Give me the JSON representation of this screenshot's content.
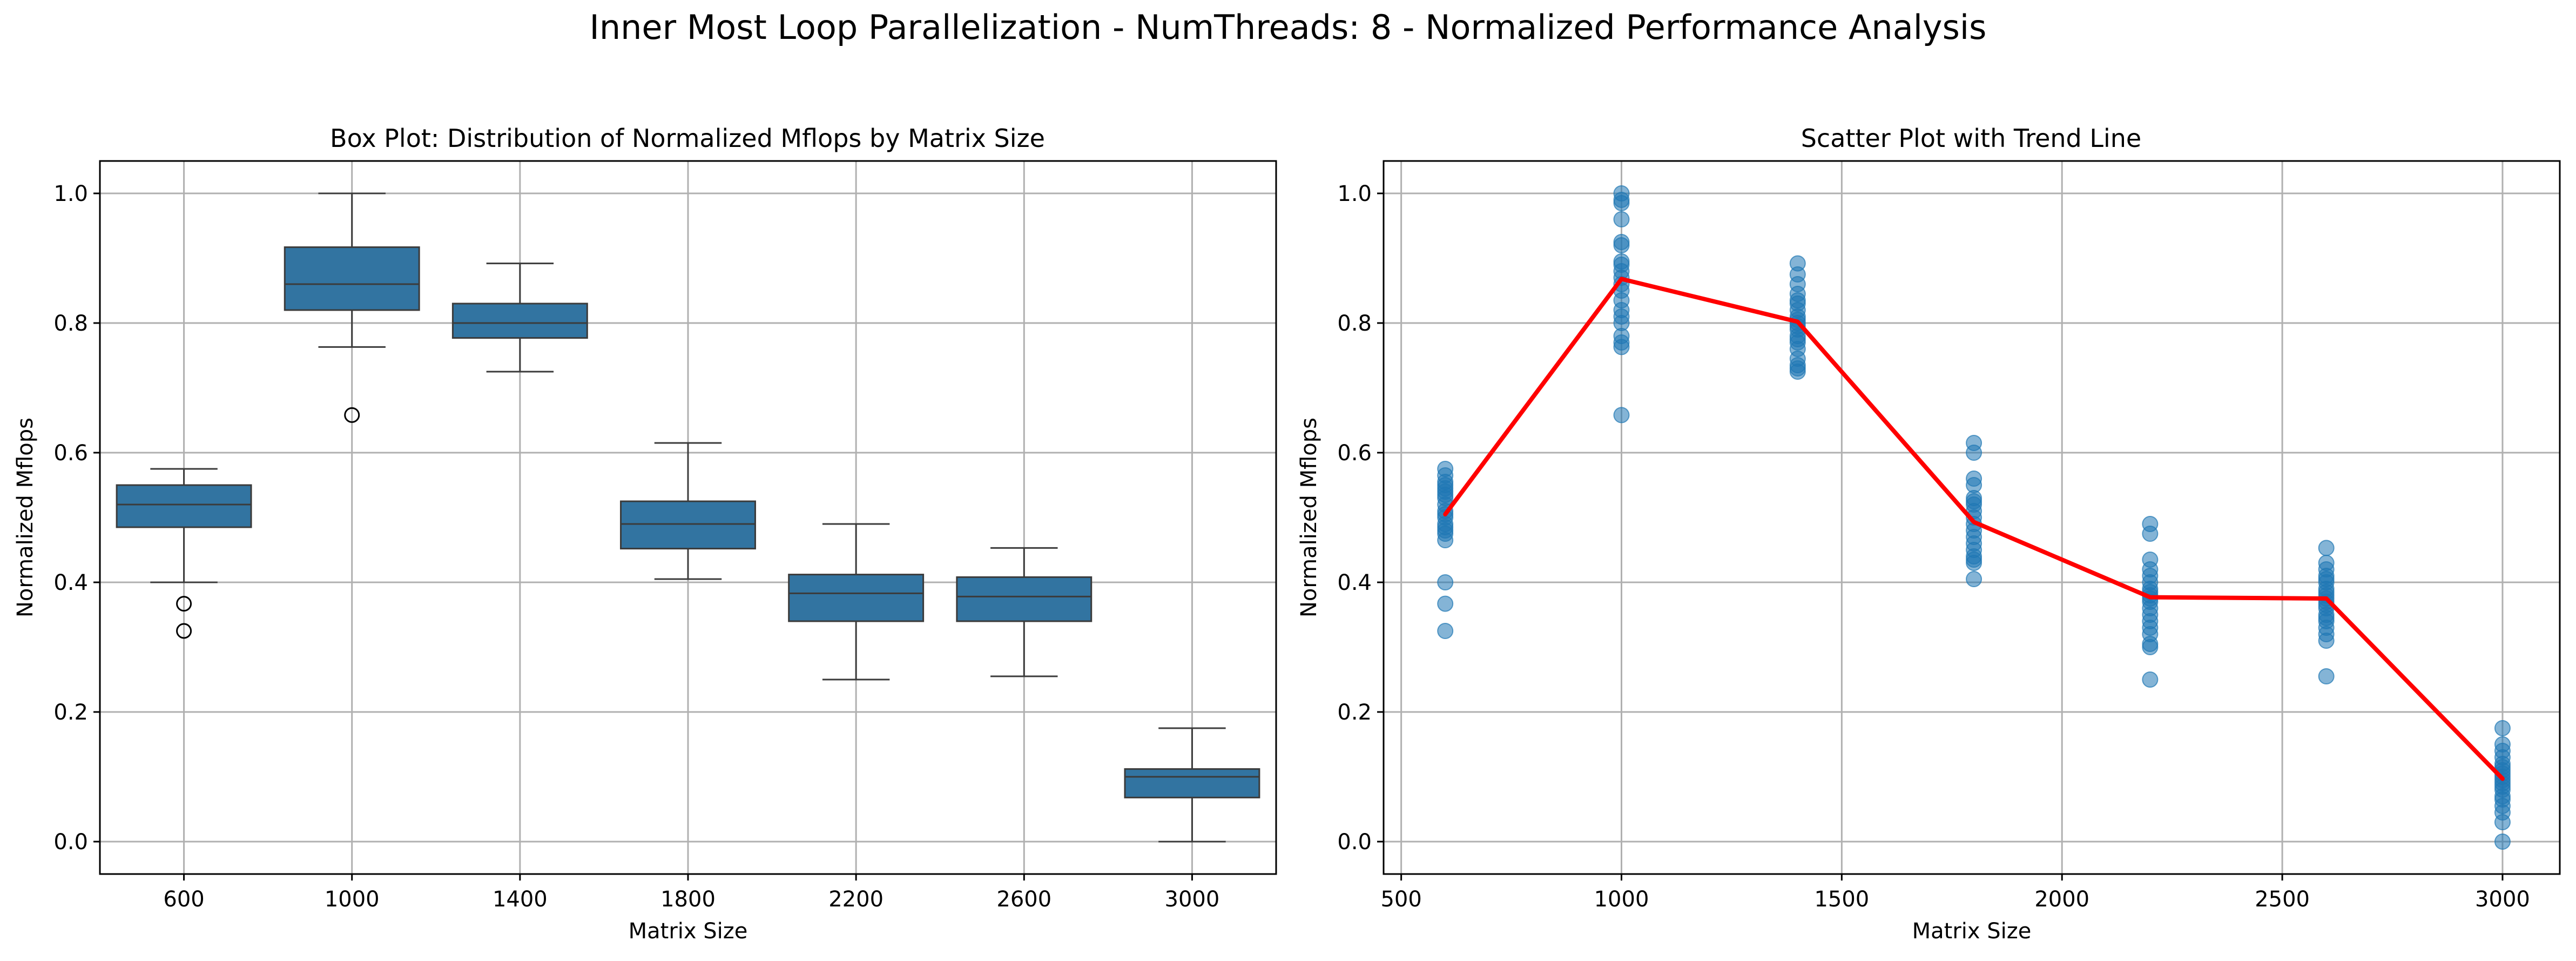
{
  "figure": {
    "suptitle": "Inner Most Loop Parallelization - NumThreads: 8 - Normalized Performance Analysis"
  },
  "colors": {
    "box_fill": "#3274a1",
    "box_edge": "#3b3b3b",
    "scatter_point": "#1f77b4",
    "trend_line": "#ff0000",
    "grid": "#b0b0b0"
  },
  "chart_data": [
    {
      "type": "box",
      "title": "Box Plot: Distribution of Normalized Mflops by Matrix Size",
      "xlabel": "Matrix Size",
      "ylabel": "Normalized Mflops",
      "categories": [
        "600",
        "1000",
        "1400",
        "1800",
        "2200",
        "2600",
        "3000"
      ],
      "ylim": [
        -0.05,
        1.05
      ],
      "yticks": [
        "0.0",
        "0.2",
        "0.4",
        "0.6",
        "0.8",
        "1.0"
      ],
      "grid": true,
      "boxes": [
        {
          "category": "600",
          "whisker_low": 0.4,
          "q1": 0.485,
          "median": 0.52,
          "q3": 0.55,
          "whisker_high": 0.575,
          "outliers": [
            0.367,
            0.325
          ]
        },
        {
          "category": "1000",
          "whisker_low": 0.763,
          "q1": 0.82,
          "median": 0.86,
          "q3": 0.917,
          "whisker_high": 1.0,
          "outliers": [
            0.658
          ]
        },
        {
          "category": "1400",
          "whisker_low": 0.725,
          "q1": 0.777,
          "median": 0.8,
          "q3": 0.83,
          "whisker_high": 0.892,
          "outliers": []
        },
        {
          "category": "1800",
          "whisker_low": 0.405,
          "q1": 0.452,
          "median": 0.49,
          "q3": 0.525,
          "whisker_high": 0.615,
          "outliers": []
        },
        {
          "category": "2200",
          "whisker_low": 0.25,
          "q1": 0.34,
          "median": 0.383,
          "q3": 0.412,
          "whisker_high": 0.49,
          "outliers": []
        },
        {
          "category": "2600",
          "whisker_low": 0.255,
          "q1": 0.34,
          "median": 0.378,
          "q3": 0.408,
          "whisker_high": 0.453,
          "outliers": []
        },
        {
          "category": "3000",
          "whisker_low": 0.0,
          "q1": 0.068,
          "median": 0.1,
          "q3": 0.112,
          "whisker_high": 0.175,
          "outliers": []
        }
      ]
    },
    {
      "type": "scatter",
      "title": "Scatter Plot with Trend Line",
      "xlabel": "Matrix Size",
      "ylabel": "Normalized Mflops",
      "xlim": [
        460,
        3130
      ],
      "ylim": [
        -0.05,
        1.05
      ],
      "xticks": [
        "500",
        "1000",
        "1500",
        "2000",
        "2500",
        "3000"
      ],
      "yticks": [
        "0.0",
        "0.2",
        "0.4",
        "0.6",
        "0.8",
        "1.0"
      ],
      "grid": true,
      "points": [
        {
          "x": 600,
          "y": [
            0.575,
            0.565,
            0.555,
            0.55,
            0.545,
            0.54,
            0.535,
            0.53,
            0.52,
            0.51,
            0.505,
            0.5,
            0.49,
            0.485,
            0.48,
            0.475,
            0.465,
            0.4,
            0.367,
            0.325
          ]
        },
        {
          "x": 1000,
          "y": [
            1.0,
            0.99,
            0.985,
            0.96,
            0.925,
            0.92,
            0.895,
            0.89,
            0.88,
            0.87,
            0.86,
            0.85,
            0.835,
            0.82,
            0.81,
            0.8,
            0.78,
            0.77,
            0.763,
            0.658
          ]
        },
        {
          "x": 1400,
          "y": [
            0.892,
            0.875,
            0.86,
            0.845,
            0.835,
            0.83,
            0.82,
            0.81,
            0.805,
            0.8,
            0.795,
            0.79,
            0.78,
            0.775,
            0.77,
            0.76,
            0.745,
            0.735,
            0.73,
            0.725
          ]
        },
        {
          "x": 1800,
          "y": [
            0.615,
            0.6,
            0.56,
            0.55,
            0.53,
            0.525,
            0.52,
            0.51,
            0.5,
            0.49,
            0.48,
            0.47,
            0.46,
            0.45,
            0.44,
            0.435,
            0.43,
            0.405
          ]
        },
        {
          "x": 2200,
          "y": [
            0.49,
            0.475,
            0.435,
            0.42,
            0.41,
            0.4,
            0.39,
            0.385,
            0.38,
            0.375,
            0.37,
            0.36,
            0.35,
            0.34,
            0.33,
            0.32,
            0.305,
            0.3,
            0.25
          ]
        },
        {
          "x": 2600,
          "y": [
            0.453,
            0.43,
            0.42,
            0.41,
            0.405,
            0.4,
            0.39,
            0.385,
            0.38,
            0.375,
            0.37,
            0.365,
            0.36,
            0.35,
            0.345,
            0.34,
            0.33,
            0.32,
            0.31,
            0.255
          ]
        },
        {
          "x": 3000,
          "y": [
            0.175,
            0.15,
            0.14,
            0.13,
            0.12,
            0.115,
            0.11,
            0.105,
            0.1,
            0.095,
            0.09,
            0.085,
            0.08,
            0.07,
            0.065,
            0.055,
            0.045,
            0.03,
            0.0
          ]
        }
      ],
      "trend": {
        "x": [
          600,
          1000,
          1400,
          1800,
          2200,
          2600,
          3000
        ],
        "y": [
          0.505,
          0.868,
          0.802,
          0.493,
          0.377,
          0.375,
          0.097
        ]
      }
    }
  ]
}
